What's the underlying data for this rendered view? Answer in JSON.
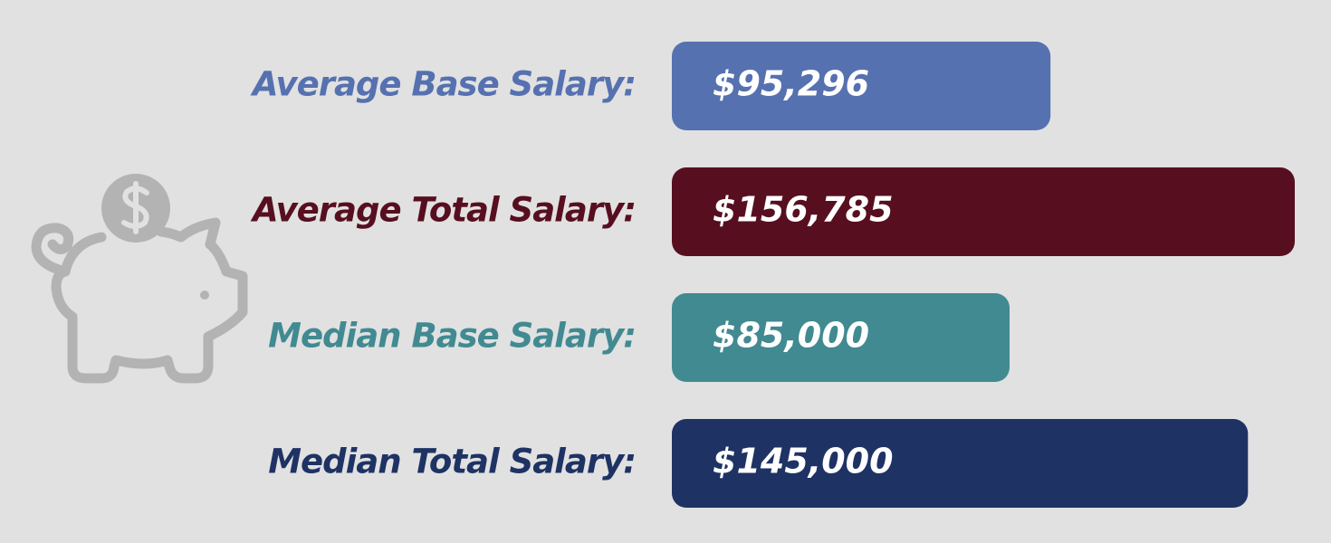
{
  "chart_data": {
    "type": "bar",
    "orientation": "horizontal",
    "categories": [
      "Average Base Salary:",
      "Average Total Salary:",
      "Median Base Salary:",
      "Median Total Salary:"
    ],
    "values": [
      95296,
      156785,
      85000,
      145000
    ],
    "value_labels": [
      "$95,296",
      "$156,785",
      "$85,000",
      "$145,000"
    ],
    "colors": [
      "#5671b0",
      "#570f20",
      "#418a91",
      "#1e3264"
    ]
  }
}
